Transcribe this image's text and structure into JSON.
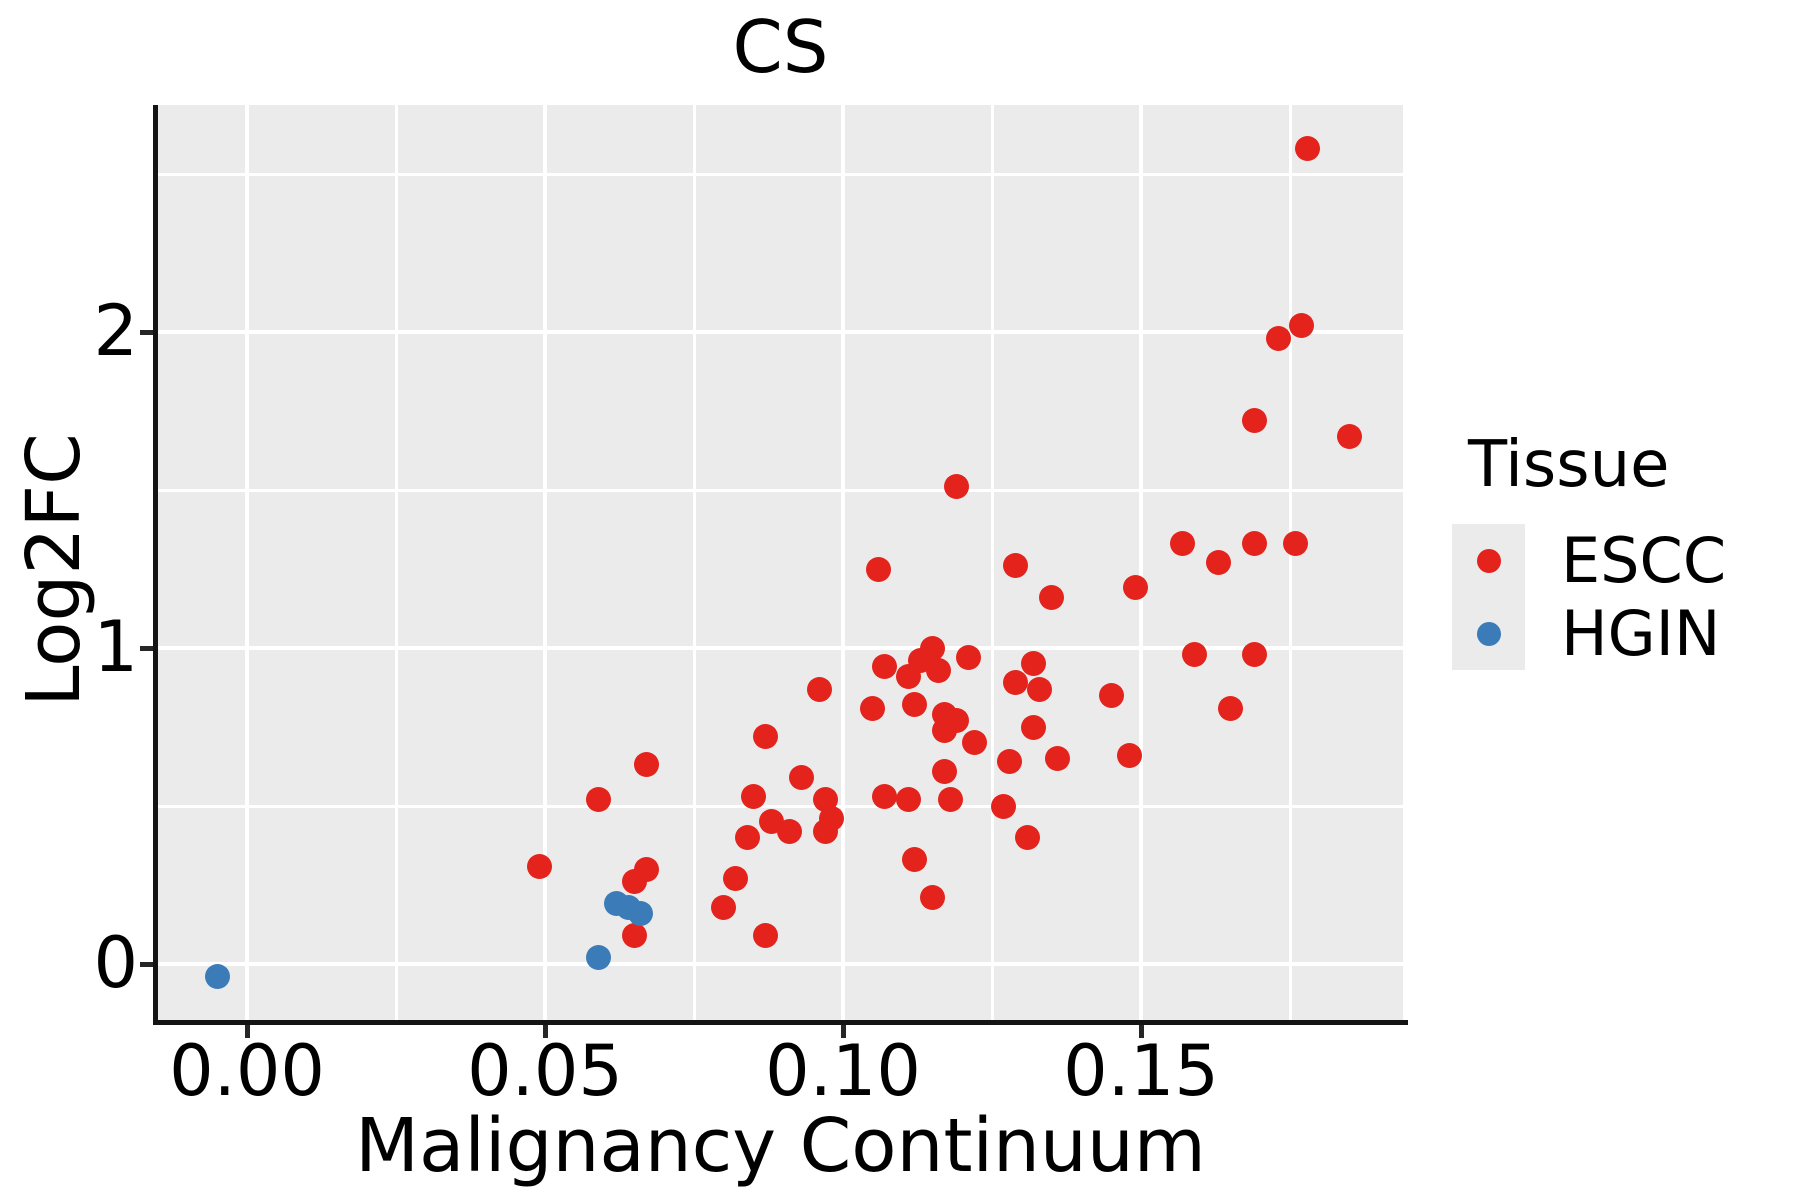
{
  "title": "CS",
  "x_axis": {
    "label": "Malignancy Continuum",
    "tick_labels": [
      "0.00",
      "0.05",
      "0.10",
      "0.15"
    ],
    "tick_values": [
      0,
      0.05,
      0.1,
      0.15
    ],
    "minor_values": [
      0.025,
      0.075,
      0.125,
      0.175
    ]
  },
  "y_axis": {
    "label": "Log2FC",
    "tick_labels": [
      "0",
      "1",
      "2"
    ],
    "tick_values": [
      0,
      1,
      2
    ],
    "minor_values": [
      0.5,
      1.5,
      2.5
    ]
  },
  "legend": {
    "title": "Tissue",
    "entries": [
      {
        "label": "ESCC",
        "color": "#e3231c"
      },
      {
        "label": "HGIN",
        "color": "#3b7cb8"
      }
    ]
  },
  "colors": {
    "panel_bg": "#ebebeb",
    "grid": "#ffffff",
    "axis": "#141414",
    "text": "#000000",
    "escc": "#e3231c",
    "hgin": "#3b7cb8"
  },
  "chart_data": {
    "type": "scatter",
    "title": "CS",
    "xlabel": "Malignancy Continuum",
    "ylabel": "Log2FC",
    "xlim": [
      -0.015,
      0.194
    ],
    "ylim": [
      -0.18,
      2.72
    ],
    "grid": true,
    "legend_position": "right",
    "series": [
      {
        "name": "ESCC",
        "color": "#e3231c",
        "points": [
          [
            0.049,
            0.31
          ],
          [
            0.059,
            0.52
          ],
          [
            0.065,
            0.26
          ],
          [
            0.067,
            0.3
          ],
          [
            0.065,
            0.09
          ],
          [
            0.067,
            0.63
          ],
          [
            0.08,
            0.18
          ],
          [
            0.082,
            0.27
          ],
          [
            0.087,
            0.72
          ],
          [
            0.087,
            0.09
          ],
          [
            0.084,
            0.4
          ],
          [
            0.088,
            0.45
          ],
          [
            0.091,
            0.42
          ],
          [
            0.093,
            0.59
          ],
          [
            0.085,
            0.53
          ],
          [
            0.096,
            0.87
          ],
          [
            0.097,
            0.52
          ],
          [
            0.098,
            0.46
          ],
          [
            0.097,
            0.42
          ],
          [
            0.107,
            0.94
          ],
          [
            0.111,
            0.91
          ],
          [
            0.113,
            0.96
          ],
          [
            0.115,
            1.0
          ],
          [
            0.116,
            0.93
          ],
          [
            0.121,
            0.97
          ],
          [
            0.129,
            0.89
          ],
          [
            0.133,
            0.87
          ],
          [
            0.132,
            0.95
          ],
          [
            0.145,
            0.85
          ],
          [
            0.105,
            0.81
          ],
          [
            0.112,
            0.82
          ],
          [
            0.117,
            0.79
          ],
          [
            0.119,
            0.77
          ],
          [
            0.117,
            0.74
          ],
          [
            0.122,
            0.7
          ],
          [
            0.128,
            0.64
          ],
          [
            0.132,
            0.75
          ],
          [
            0.136,
            0.65
          ],
          [
            0.148,
            0.66
          ],
          [
            0.117,
            0.61
          ],
          [
            0.107,
            0.53
          ],
          [
            0.111,
            0.52
          ],
          [
            0.118,
            0.52
          ],
          [
            0.127,
            0.5
          ],
          [
            0.131,
            0.4
          ],
          [
            0.112,
            0.33
          ],
          [
            0.115,
            0.21
          ],
          [
            0.165,
            0.81
          ],
          [
            0.119,
            1.51
          ],
          [
            0.106,
            1.25
          ],
          [
            0.129,
            1.26
          ],
          [
            0.135,
            1.16
          ],
          [
            0.149,
            1.19
          ],
          [
            0.157,
            1.33
          ],
          [
            0.163,
            1.27
          ],
          [
            0.169,
            1.33
          ],
          [
            0.176,
            1.33
          ],
          [
            0.169,
            1.72
          ],
          [
            0.185,
            1.67
          ],
          [
            0.169,
            0.98
          ],
          [
            0.159,
            0.98
          ],
          [
            0.178,
            2.58
          ],
          [
            0.173,
            1.98
          ],
          [
            0.177,
            2.02
          ]
        ]
      },
      {
        "name": "HGIN",
        "color": "#3b7cb8",
        "points": [
          [
            -0.005,
            -0.04
          ],
          [
            0.059,
            0.02
          ],
          [
            0.062,
            0.19
          ],
          [
            0.064,
            0.18
          ],
          [
            0.066,
            0.16
          ]
        ]
      }
    ]
  }
}
